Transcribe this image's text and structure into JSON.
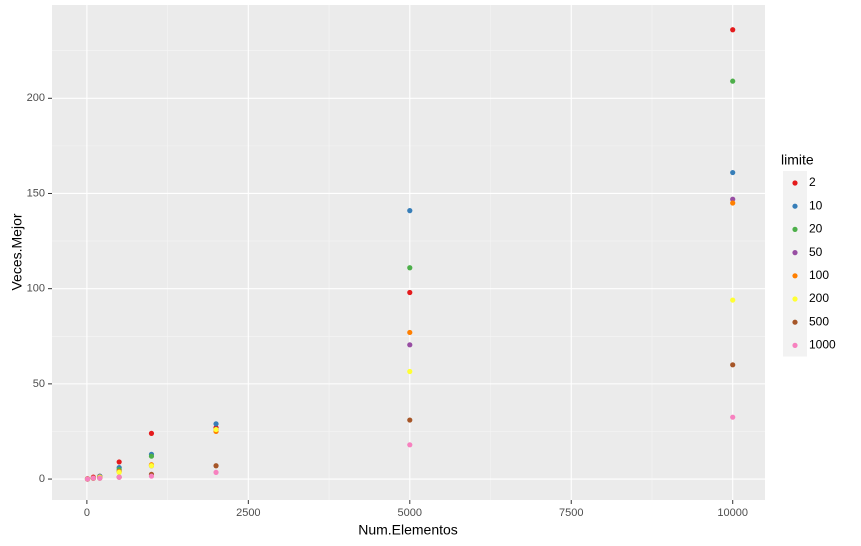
{
  "chart_data": {
    "type": "scatter",
    "x_label": "Num.Elementos",
    "y_label": "Veces.Mejor",
    "legend_title": "limite",
    "legend_position": "right",
    "x": [
      10,
      100,
      200,
      500,
      1000,
      2000,
      5000,
      10000
    ],
    "series": [
      {
        "name": "2",
        "color": "#E41A1C",
        "values": [
          0.2,
          1,
          1.5,
          9,
          24,
          27,
          98,
          236
        ]
      },
      {
        "name": "10",
        "color": "#377EB8",
        "values": [
          0,
          0.5,
          1.5,
          6,
          13,
          29,
          141,
          161
        ]
      },
      {
        "name": "20",
        "color": "#4DAF4A",
        "values": [
          0,
          0.5,
          1,
          5,
          12,
          26,
          111,
          209
        ]
      },
      {
        "name": "50",
        "color": "#984EA3",
        "values": [
          0,
          0.5,
          1,
          4,
          7,
          26,
          70.5,
          147
        ]
      },
      {
        "name": "100",
        "color": "#FF7F00",
        "values": [
          0,
          0.5,
          1,
          4,
          7.5,
          25,
          77,
          145
        ]
      },
      {
        "name": "200",
        "color": "#FFFF33",
        "values": [
          0,
          0.5,
          1,
          3.5,
          7,
          26,
          56.5,
          94
        ]
      },
      {
        "name": "500",
        "color": "#A65628",
        "values": [
          0,
          0.5,
          0.5,
          1,
          2.5,
          7,
          31,
          60
        ]
      },
      {
        "name": "1000",
        "color": "#F781BF",
        "values": [
          0,
          0.5,
          0.5,
          1,
          1.5,
          3.5,
          18,
          32.5
        ]
      }
    ],
    "xlim": [
      -540,
      10500
    ],
    "ylim": [
      -11,
      249
    ],
    "xticks": [
      0,
      2500,
      5000,
      7500,
      10000
    ],
    "yticks": [
      0,
      50,
      100,
      150,
      200
    ],
    "grid": true
  }
}
